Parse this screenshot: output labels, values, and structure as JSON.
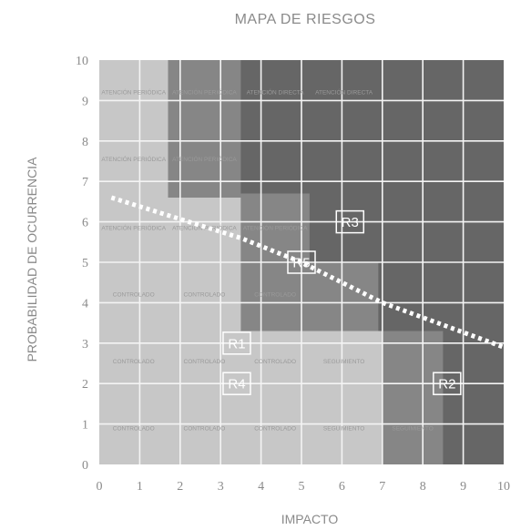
{
  "chart_data": {
    "type": "heatmap",
    "title": "MAPA DE RIESGOS",
    "xlabel": "IMPACTO",
    "ylabel": "PROBABILIDAD  DE OCURRENCIA",
    "xlim": [
      0,
      10
    ],
    "ylim": [
      0,
      10
    ],
    "x_ticks": [
      "0",
      "1",
      "2",
      "3",
      "4",
      "5",
      "6",
      "7",
      "8",
      "9",
      "10"
    ],
    "y_ticks": [
      "0",
      "1",
      "2",
      "3",
      "4",
      "5",
      "6",
      "7",
      "8",
      "9",
      "10"
    ],
    "grid": true,
    "zones": [
      {
        "level": "low",
        "color": "#c7c7c7",
        "polygon": [
          [
            0,
            0
          ],
          [
            10,
            0
          ],
          [
            10,
            10
          ],
          [
            0,
            10
          ]
        ]
      },
      {
        "level": "medium",
        "color": "#a8a8a8",
        "polygon": [
          [
            0,
            10
          ],
          [
            1.7,
            10
          ],
          [
            1.7,
            8.3
          ],
          [
            3.5,
            8.3
          ],
          [
            3.5,
            5
          ],
          [
            7,
            5
          ],
          [
            7,
            1.7
          ],
          [
            10,
            1.7
          ],
          [
            10,
            10
          ]
        ]
      },
      {
        "level": "high",
        "color": "#868686",
        "polygon": [
          [
            1.7,
            10
          ],
          [
            1.7,
            6.6
          ],
          [
            3.5,
            6.6
          ],
          [
            3.5,
            3.3
          ],
          [
            7,
            3.3
          ],
          [
            7,
            0
          ],
          [
            10,
            0
          ],
          [
            10,
            10
          ]
        ]
      },
      {
        "level": "extreme",
        "color": "#666666",
        "polygon": [
          [
            3.5,
            10
          ],
          [
            3.5,
            6.7
          ],
          [
            5.2,
            6.7
          ],
          [
            5.2,
            5
          ],
          [
            6.9,
            5
          ],
          [
            6.9,
            3.3
          ],
          [
            8.5,
            3.3
          ],
          [
            8.5,
            0
          ],
          [
            10,
            0
          ],
          [
            10,
            10
          ]
        ]
      }
    ],
    "cell_labels": [
      {
        "x": 0.85,
        "y": 9.15,
        "text": "ATENCIÓN PERIÓDICA"
      },
      {
        "x": 2.6,
        "y": 9.15,
        "text": "ATENCIÓN PERIÓDICA"
      },
      {
        "x": 4.35,
        "y": 9.15,
        "text": "ATENCIÓN DIRECTA"
      },
      {
        "x": 6.05,
        "y": 9.15,
        "text": "ATENCIÓN DIRECTA"
      },
      {
        "x": 0.85,
        "y": 7.5,
        "text": "ATENCIÓN PERIÓDICA"
      },
      {
        "x": 2.6,
        "y": 7.5,
        "text": "ATENCIÓN PERIÓDICA"
      },
      {
        "x": 0.85,
        "y": 5.8,
        "text": "ATENCIÓN PERIÓDICA"
      },
      {
        "x": 2.6,
        "y": 5.8,
        "text": "ATENCIÓN PERIÓDICA"
      },
      {
        "x": 4.35,
        "y": 5.8,
        "text": "ATENCIÓN PERIÓDICA"
      },
      {
        "x": 0.85,
        "y": 4.15,
        "text": "CONTROLADO"
      },
      {
        "x": 2.6,
        "y": 4.15,
        "text": "CONTROLADO"
      },
      {
        "x": 4.35,
        "y": 4.15,
        "text": "CONTROLADO"
      },
      {
        "x": 0.85,
        "y": 2.5,
        "text": "CONTROLADO"
      },
      {
        "x": 2.6,
        "y": 2.5,
        "text": "CONTROLADO"
      },
      {
        "x": 4.35,
        "y": 2.5,
        "text": "CONTROLADO"
      },
      {
        "x": 6.05,
        "y": 2.5,
        "text": "SEGUIMIENTO"
      },
      {
        "x": 0.85,
        "y": 0.85,
        "text": "CONTROLADO"
      },
      {
        "x": 2.6,
        "y": 0.85,
        "text": "CONTROLADO"
      },
      {
        "x": 4.35,
        "y": 0.85,
        "text": "CONTROLADO"
      },
      {
        "x": 6.05,
        "y": 0.85,
        "text": "SEGUIMIENTO"
      },
      {
        "x": 7.75,
        "y": 0.85,
        "text": "SEGUIMIENTO"
      }
    ],
    "risks": [
      {
        "label": "R1",
        "x": 3.4,
        "y": 3.0
      },
      {
        "label": "R2",
        "x": 8.6,
        "y": 2.0
      },
      {
        "label": "R3",
        "x": 6.2,
        "y": 6.0
      },
      {
        "label": "R4",
        "x": 3.4,
        "y": 2.0
      },
      {
        "label": "R5",
        "x": 5.0,
        "y": 5.0
      }
    ],
    "threshold_line": {
      "x": [
        0.3,
        3.5,
        5.0,
        7.0,
        10.0
      ],
      "y": [
        6.6,
        5.6,
        5.0,
        4.0,
        2.9
      ]
    }
  }
}
